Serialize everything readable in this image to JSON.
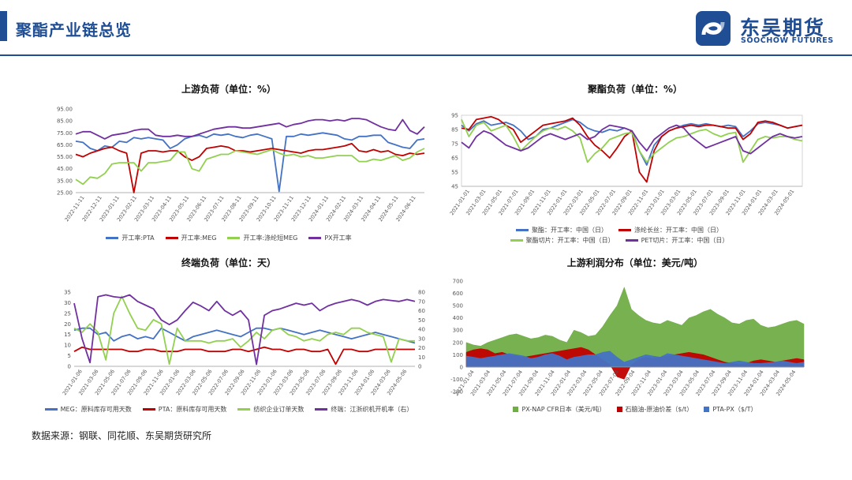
{
  "header": {
    "title": "聚酯产业链总览",
    "logo_cn": "东吴期货",
    "logo_en": "SOOCHOW FUTURES"
  },
  "source_note": "数据来源：钢联、同花顺、东吴期货研究所",
  "colors": {
    "brand": "#1f4e95"
  },
  "chart_data": [
    {
      "id": "upstream",
      "type": "line",
      "title": "上游负荷（单位：%）",
      "ylim": [
        25,
        95
      ],
      "yticks": [
        "95.00",
        "85.00",
        "75.00",
        "65.00",
        "55.00",
        "45.00",
        "35.00",
        "25.00"
      ],
      "x_ticks": [
        "2022-11-11",
        "2022-12-11",
        "2023-01-11",
        "2023-02-11",
        "2023-03-11",
        "2023-04-11",
        "2023-05-11",
        "2023-06-11",
        "2023-07-11",
        "2023-08-11",
        "2023-09-11",
        "2023-10-11",
        "2023-11-11",
        "2023-12-11",
        "2024-01-11",
        "2024-02-11",
        "2024-03-11",
        "2024-04-11",
        "2024-05-11",
        "2024-06-11"
      ],
      "series": [
        {
          "name": "开工率:PTA",
          "color": "#4472c4",
          "values": [
            68,
            67,
            62,
            60,
            64,
            63,
            68,
            67,
            71,
            70,
            71,
            70,
            69,
            62,
            65,
            70,
            72,
            73,
            71,
            74,
            73,
            74,
            72,
            71,
            73,
            74,
            72,
            70,
            26,
            72,
            72,
            74,
            73,
            74,
            75,
            74,
            73,
            70,
            69,
            72,
            72,
            73,
            73,
            67,
            65,
            63,
            62,
            69,
            70
          ]
        },
        {
          "name": "开工率:MEG",
          "color": "#c00000",
          "values": [
            57,
            55,
            58,
            60,
            62,
            63,
            60,
            58,
            25,
            58,
            60,
            60,
            59,
            60,
            60,
            55,
            52,
            55,
            62,
            63,
            64,
            63,
            60,
            60,
            59,
            60,
            61,
            62,
            61,
            60,
            59,
            58,
            60,
            61,
            61,
            62,
            63,
            64,
            66,
            60,
            59,
            61,
            59,
            60,
            57,
            56,
            58,
            57,
            58
          ]
        },
        {
          "name": "开工率:涤纶短MEG",
          "color": "#92d050",
          "values": [
            36,
            32,
            38,
            37,
            41,
            49,
            50,
            50,
            50,
            43,
            50,
            50,
            51,
            52,
            59,
            59,
            45,
            43,
            53,
            55,
            57,
            57,
            60,
            59,
            58,
            57,
            59,
            61,
            58,
            56,
            57,
            55,
            56,
            54,
            54,
            55,
            56,
            56,
            56,
            51,
            51,
            53,
            52,
            54,
            56,
            52,
            54,
            59,
            62
          ]
        },
        {
          "name": "PX开工率",
          "color": "#7030a0",
          "values": [
            74,
            76,
            76,
            73,
            70,
            73,
            74,
            75,
            77,
            78,
            78,
            73,
            72,
            72,
            73,
            72,
            72,
            74,
            76,
            78,
            79,
            80,
            80,
            79,
            79,
            80,
            81,
            82,
            83,
            80,
            82,
            83,
            85,
            86,
            86,
            85,
            86,
            85,
            87,
            87,
            86,
            83,
            80,
            78,
            77,
            86,
            77,
            74,
            80
          ]
        }
      ]
    },
    {
      "id": "polyester",
      "type": "line",
      "title": "聚酯负荷（单位：%）",
      "ylim": [
        45,
        95
      ],
      "yticks": [
        "95",
        "85",
        "75",
        "65",
        "55",
        "45"
      ],
      "x_ticks": [
        "2021-01-01",
        "2021-03-01",
        "2021-05-01",
        "2021-07-01",
        "2021-09-01",
        "2021-11-01",
        "2022-01-01",
        "2022-03-01",
        "2022-05-01",
        "2022-07-01",
        "2022-09-01",
        "2022-11-01",
        "2023-01-01",
        "2023-03-01",
        "2023-05-01",
        "2023-07-01",
        "2023-09-01",
        "2023-11-01",
        "2024-01-01",
        "2024-03-01",
        "2024-05-01"
      ],
      "series": [
        {
          "name": "聚酯：开工率：中国（日）",
          "color": "#4472c4",
          "values": [
            88,
            84,
            89,
            91,
            88,
            89,
            90,
            88,
            84,
            78,
            80,
            85,
            86,
            88,
            90,
            92,
            90,
            86,
            84,
            83,
            85,
            84,
            86,
            84,
            70,
            60,
            74,
            80,
            84,
            86,
            88,
            89,
            88,
            89,
            88,
            87,
            88,
            87,
            80,
            84,
            89,
            90,
            89,
            88,
            86,
            87,
            88
          ]
        },
        {
          "name": "涤纶长丝：开工率：中国（日）",
          "color": "#c00000",
          "values": [
            86,
            85,
            92,
            93,
            94,
            92,
            88,
            85,
            76,
            80,
            84,
            88,
            89,
            90,
            91,
            93,
            88,
            80,
            74,
            70,
            65,
            72,
            80,
            84,
            55,
            48,
            70,
            80,
            84,
            86,
            87,
            88,
            87,
            88,
            88,
            87,
            86,
            86,
            78,
            82,
            90,
            91,
            90,
            88,
            86,
            87,
            88
          ]
        },
        {
          "name": "聚酯切片：开工率：中国（日）",
          "color": "#92d050",
          "values": [
            92,
            80,
            88,
            90,
            84,
            86,
            88,
            80,
            70,
            75,
            80,
            84,
            86,
            85,
            87,
            84,
            79,
            62,
            68,
            72,
            78,
            80,
            82,
            83,
            70,
            62,
            68,
            72,
            76,
            79,
            80,
            82,
            84,
            85,
            82,
            80,
            82,
            83,
            62,
            70,
            78,
            80,
            79,
            80,
            80,
            78,
            77
          ]
        },
        {
          "name": "PET切片：开工率：中国（日）",
          "color": "#7030a0",
          "values": [
            76,
            72,
            80,
            84,
            82,
            78,
            74,
            72,
            70,
            72,
            76,
            80,
            82,
            80,
            78,
            80,
            82,
            78,
            80,
            85,
            88,
            87,
            86,
            84,
            76,
            70,
            78,
            82,
            86,
            88,
            86,
            80,
            76,
            72,
            74,
            76,
            78,
            80,
            70,
            68,
            72,
            76,
            80,
            82,
            80,
            79,
            80
          ]
        }
      ]
    },
    {
      "id": "downstream",
      "type": "line",
      "title": "终端负荷（单位：天）",
      "ylim_left": [
        0,
        35
      ],
      "ylim_right": [
        0,
        80
      ],
      "yticks_left": [
        "35",
        "30",
        "25",
        "20",
        "15",
        "10",
        "5",
        "0"
      ],
      "yticks_right": [
        "80",
        "70",
        "60",
        "50",
        "40",
        "30",
        "20",
        "10",
        "0"
      ],
      "x_ticks": [
        "2021-01-06",
        "2021-03-06",
        "2021-05-06",
        "2021-07-06",
        "2021-09-06",
        "2021-11-06",
        "2022-01-06",
        "2022-03-06",
        "2022-05-06",
        "2022-07-06",
        "2022-09-06",
        "2022-11-06",
        "2023-01-06",
        "2023-03-06",
        "2023-05-06",
        "2023-07-06",
        "2023-09-06",
        "2023-11-06",
        "2024-01-06",
        "2024-03-06",
        "2024-05-06"
      ],
      "series": [
        {
          "name": "MEG：原料库存可用天数",
          "color": "#4472c4",
          "axis": "left",
          "values": [
            17,
            18,
            18,
            15,
            16,
            12,
            14,
            15,
            13,
            14,
            13,
            18,
            16,
            14,
            12,
            14,
            15,
            16,
            17,
            16,
            15,
            14,
            16,
            18,
            18,
            17,
            18,
            17,
            16,
            15,
            16,
            17,
            16,
            15,
            14,
            13,
            14,
            15,
            16,
            15,
            14,
            13,
            12,
            11
          ]
        },
        {
          "name": "PTA：原料库存可用天数",
          "color": "#c00000",
          "axis": "left",
          "values": [
            7,
            9,
            8,
            8,
            8,
            8,
            8,
            7,
            7,
            8,
            8,
            7,
            7,
            7,
            8,
            8,
            8,
            7,
            7,
            7,
            8,
            8,
            7,
            8,
            9,
            8,
            8,
            7,
            8,
            8,
            7,
            7,
            8,
            1,
            8,
            8,
            7,
            7,
            8,
            8,
            8,
            8,
            8,
            8
          ]
        },
        {
          "name": "纺织企业订单天数",
          "color": "#92d050",
          "axis": "left",
          "values": [
            18,
            16,
            20,
            16,
            3,
            25,
            33,
            25,
            18,
            17,
            22,
            20,
            1,
            18,
            12,
            12,
            12,
            11,
            12,
            12,
            13,
            9,
            12,
            16,
            13,
            17,
            18,
            15,
            14,
            12,
            13,
            12,
            15,
            16,
            15,
            18,
            18,
            16,
            15,
            14,
            2,
            13,
            12,
            12
          ]
        },
        {
          "name": "终端：江浙织机开机率（右）",
          "color": "#7030a0",
          "axis": "right",
          "values": [
            68,
            30,
            4,
            75,
            77,
            75,
            74,
            77,
            70,
            66,
            62,
            50,
            45,
            50,
            60,
            69,
            65,
            60,
            70,
            60,
            55,
            60,
            50,
            2,
            55,
            60,
            62,
            65,
            68,
            66,
            68,
            60,
            65,
            68,
            70,
            72,
            70,
            66,
            70,
            72,
            71,
            70,
            72,
            70
          ]
        }
      ]
    },
    {
      "id": "profit",
      "type": "area",
      "title": "上游利润分布（单位：美元/吨）",
      "ylim": [
        -200,
        700
      ],
      "yticks": [
        "700",
        "600",
        "500",
        "400",
        "300",
        "200",
        "100",
        "0",
        "-100",
        "-200"
      ],
      "x_ticks": [
        "2021-01-04",
        "2021-03-04",
        "2021-05-04",
        "2021-07-04",
        "2021-09-04",
        "2021-11-04",
        "2022-01-04",
        "2022-03-04",
        "2022-05-04",
        "2022-07-04",
        "2022-09-04",
        "2022-11-04",
        "2023-01-04",
        "2023-03-04",
        "2023-05-04",
        "2023-07-04",
        "2023-09-04",
        "2023-11-04",
        "2024-01-04",
        "2024-03-04",
        "2024-05-04"
      ],
      "series": [
        {
          "name": "PX-NAP CFR日本（美元/吨）",
          "color": "#70ad47",
          "values": [
            200,
            180,
            170,
            200,
            220,
            240,
            260,
            270,
            250,
            230,
            240,
            260,
            250,
            220,
            200,
            300,
            280,
            250,
            260,
            330,
            420,
            500,
            650,
            470,
            420,
            380,
            360,
            350,
            380,
            360,
            340,
            400,
            420,
            450,
            470,
            430,
            400,
            360,
            350,
            380,
            390,
            340,
            320,
            330,
            350,
            370,
            380,
            350
          ]
        },
        {
          "name": "石脑油-原油价差（$/t）",
          "color": "#c00000",
          "values": [
            120,
            140,
            150,
            140,
            110,
            120,
            100,
            90,
            80,
            90,
            100,
            110,
            120,
            130,
            140,
            150,
            160,
            140,
            100,
            60,
            20,
            -80,
            -100,
            20,
            60,
            80,
            70,
            80,
            90,
            100,
            110,
            120,
            110,
            100,
            80,
            60,
            40,
            30,
            20,
            30,
            50,
            60,
            50,
            40,
            50,
            60,
            70,
            60
          ]
        },
        {
          "name": "PTA-PX（$/T）",
          "color": "#4472c4",
          "values": [
            90,
            80,
            70,
            80,
            90,
            100,
            110,
            100,
            90,
            70,
            80,
            100,
            110,
            90,
            60,
            80,
            90,
            100,
            100,
            120,
            130,
            80,
            40,
            60,
            80,
            100,
            90,
            80,
            110,
            100,
            90,
            80,
            70,
            60,
            50,
            40,
            30,
            40,
            50,
            40,
            30,
            30,
            35,
            40,
            50,
            40,
            30,
            40
          ]
        }
      ]
    }
  ]
}
